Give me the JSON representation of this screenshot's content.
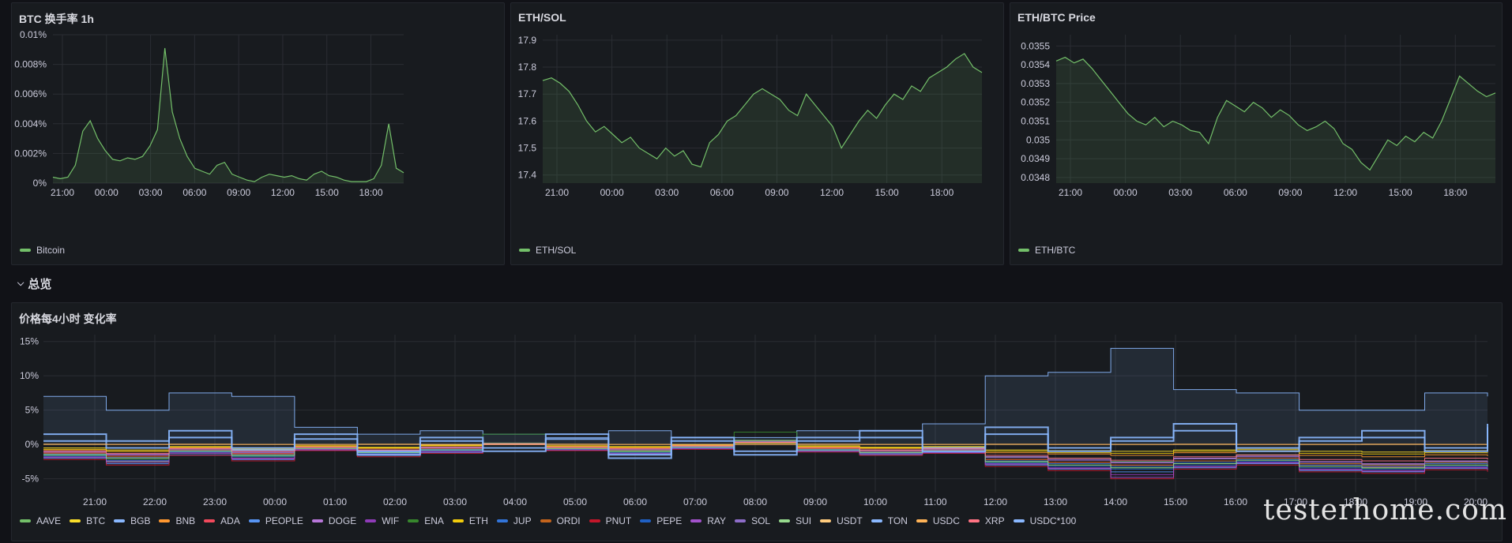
{
  "panels": {
    "btc": {
      "title": "BTC 换手率 1h"
    },
    "ethsol": {
      "title": "ETH/SOL"
    },
    "ethbtc": {
      "title": "ETH/BTC Price"
    },
    "change": {
      "title": "价格每4小时 变化率"
    }
  },
  "row": {
    "title": "总览",
    "chevron_icon": "chevron-down-icon"
  },
  "watermark": "testerhome.com",
  "colors": {
    "panel_bg": "#181b1f",
    "page_bg": "#111217",
    "green": "#73bf69",
    "grid": "#2a2d33"
  },
  "chart_data": [
    {
      "id": "btc",
      "type": "area",
      "title": "BTC 换手率 1h",
      "x_ticks": [
        "21:00",
        "00:00",
        "03:00",
        "06:00",
        "09:00",
        "12:00",
        "15:00",
        "18:00"
      ],
      "y_ticks": [
        "0%",
        "0.002%",
        "0.004%",
        "0.006%",
        "0.008%",
        "0.01%"
      ],
      "ylim": [
        0,
        0.01
      ],
      "series": [
        {
          "name": "Bitcoin",
          "color": "#73bf69",
          "values": [
            0.0004,
            0.0003,
            0.0004,
            0.0012,
            0.0035,
            0.0042,
            0.003,
            0.0022,
            0.0016,
            0.0015,
            0.0017,
            0.0016,
            0.0018,
            0.0025,
            0.0036,
            0.0091,
            0.0048,
            0.003,
            0.0018,
            0.001,
            0.0008,
            0.0006,
            0.0012,
            0.0014,
            0.0006,
            0.0004,
            0.0002,
            0.0001,
            0.0004,
            0.0006,
            0.0005,
            0.0004,
            0.0005,
            0.0003,
            0.0002,
            0.0006,
            0.0008,
            0.0005,
            0.0004,
            0.0002,
            0.0001,
            0.0001,
            0.0001,
            0.0003,
            0.0012,
            0.004,
            0.001,
            0.0007
          ]
        }
      ]
    },
    {
      "id": "ethsol",
      "type": "area",
      "title": "ETH/SOL",
      "x_ticks": [
        "21:00",
        "00:00",
        "03:00",
        "06:00",
        "09:00",
        "12:00",
        "15:00",
        "18:00"
      ],
      "y_ticks": [
        "17.4",
        "17.5",
        "17.6",
        "17.7",
        "17.8",
        "17.9"
      ],
      "ylim": [
        17.37,
        17.92
      ],
      "series": [
        {
          "name": "ETH/SOL",
          "color": "#73bf69",
          "values": [
            17.75,
            17.76,
            17.74,
            17.71,
            17.66,
            17.6,
            17.56,
            17.58,
            17.55,
            17.52,
            17.54,
            17.5,
            17.48,
            17.46,
            17.5,
            17.47,
            17.49,
            17.44,
            17.43,
            17.52,
            17.55,
            17.6,
            17.62,
            17.66,
            17.7,
            17.72,
            17.7,
            17.68,
            17.64,
            17.62,
            17.7,
            17.66,
            17.62,
            17.58,
            17.5,
            17.55,
            17.6,
            17.64,
            17.61,
            17.66,
            17.7,
            17.68,
            17.73,
            17.71,
            17.76,
            17.78,
            17.8,
            17.83,
            17.85,
            17.8,
            17.78
          ]
        }
      ]
    },
    {
      "id": "ethbtc",
      "type": "area",
      "title": "ETH/BTC Price",
      "x_ticks": [
        "21:00",
        "00:00",
        "03:00",
        "06:00",
        "09:00",
        "12:00",
        "15:00",
        "18:00"
      ],
      "y_ticks": [
        "0.0348",
        "0.0349",
        "0.035",
        "0.0351",
        "0.0352",
        "0.0353",
        "0.0354",
        "0.0355"
      ],
      "ylim": [
        0.03477,
        0.03556
      ],
      "series": [
        {
          "name": "ETH/BTC",
          "color": "#73bf69",
          "values": [
            0.03542,
            0.03544,
            0.03541,
            0.03543,
            0.03538,
            0.03532,
            0.03526,
            0.0352,
            0.03514,
            0.0351,
            0.03508,
            0.03512,
            0.03507,
            0.0351,
            0.03508,
            0.03505,
            0.03504,
            0.03498,
            0.03512,
            0.03521,
            0.03518,
            0.03515,
            0.0352,
            0.03517,
            0.03512,
            0.03516,
            0.03513,
            0.03508,
            0.03505,
            0.03507,
            0.0351,
            0.03506,
            0.03498,
            0.03495,
            0.03488,
            0.03484,
            0.03492,
            0.035,
            0.03497,
            0.03502,
            0.03499,
            0.03504,
            0.03501,
            0.0351,
            0.03522,
            0.03534,
            0.0353,
            0.03526,
            0.03523,
            0.03525
          ]
        }
      ]
    },
    {
      "id": "change",
      "type": "line",
      "title": "价格每4小时 变化率",
      "x_ticks": [
        "21:00",
        "22:00",
        "23:00",
        "00:00",
        "01:00",
        "02:00",
        "03:00",
        "04:00",
        "05:00",
        "06:00",
        "07:00",
        "08:00",
        "09:00",
        "10:00",
        "11:00",
        "12:00",
        "13:00",
        "14:00",
        "15:00",
        "16:00",
        "17:00",
        "18:00",
        "19:00",
        "20:00"
      ],
      "y_ticks": [
        "-5%",
        "0%",
        "5%",
        "10%",
        "15%"
      ],
      "ylim": [
        -7,
        16
      ],
      "series": [
        {
          "name": "AAVE",
          "color": "#73bf69",
          "values": [
            -1.5,
            -2.5,
            -1.0,
            -1.8,
            -0.5,
            -1.2,
            -0.8,
            0.2,
            -0.6,
            -1.0,
            -0.4,
            0.6,
            -0.8,
            -1.2,
            -0.6,
            -1.8,
            -2.0,
            -2.5,
            -2.0,
            -1.5,
            -2.8,
            -3.0,
            -2.6,
            -3.2
          ]
        },
        {
          "name": "BTC",
          "color": "#fade2a",
          "values": [
            -0.5,
            -0.8,
            -0.3,
            -0.6,
            -0.2,
            -0.4,
            -0.1,
            0.1,
            -0.2,
            -0.3,
            -0.1,
            0.2,
            -0.2,
            -0.4,
            -0.3,
            -0.8,
            -0.9,
            -1.0,
            -0.8,
            -0.7,
            -1.0,
            -1.1,
            -0.9,
            -1.0
          ]
        },
        {
          "name": "BGB",
          "color": "#8ab8ff",
          "values": [
            7.0,
            5.0,
            7.5,
            7.0,
            2.5,
            1.5,
            2.0,
            1.5,
            1.0,
            2.0,
            1.0,
            1.0,
            2.0,
            2.0,
            3.0,
            10.0,
            10.5,
            14.0,
            8.0,
            7.5,
            5.0,
            5.0,
            7.5,
            7.0
          ]
        },
        {
          "name": "BNB",
          "color": "#ff9830",
          "values": [
            -0.8,
            -1.0,
            -0.5,
            -0.8,
            -0.3,
            -0.6,
            -0.2,
            0.0,
            -0.3,
            -0.5,
            -0.2,
            0.3,
            -0.4,
            -0.6,
            -0.5,
            -1.2,
            -1.4,
            -1.6,
            -1.2,
            -1.0,
            -1.6,
            -1.8,
            -1.5,
            -1.7
          ]
        },
        {
          "name": "ADA",
          "color": "#f2495c",
          "values": [
            -1.2,
            -1.6,
            -0.8,
            -1.3,
            -0.5,
            -1.0,
            -0.6,
            0.1,
            -0.5,
            -0.8,
            -0.4,
            0.4,
            -0.6,
            -1.0,
            -0.8,
            -2.2,
            -2.6,
            -3.0,
            -2.4,
            -2.0,
            -3.0,
            -3.3,
            -2.8,
            -3.0
          ]
        },
        {
          "name": "PEOPLE",
          "color": "#5794f2",
          "values": [
            -2.0,
            -2.8,
            -1.5,
            -2.2,
            -0.8,
            -1.6,
            -1.2,
            0.0,
            -0.8,
            -1.4,
            -0.6,
            0.5,
            -1.0,
            -1.5,
            -1.2,
            -3.0,
            -3.6,
            -4.0,
            -3.4,
            -2.8,
            -3.8,
            -4.0,
            -3.5,
            -3.8
          ]
        },
        {
          "name": "DOGE",
          "color": "#b877d9",
          "values": [
            -1.0,
            -1.4,
            -0.6,
            -1.1,
            -0.4,
            -0.8,
            -0.4,
            0.1,
            -0.4,
            -0.7,
            -0.3,
            0.3,
            -0.5,
            -0.8,
            -0.7,
            -1.8,
            -2.2,
            -2.6,
            -2.0,
            -1.7,
            -2.5,
            -2.8,
            -2.4,
            -2.6
          ]
        },
        {
          "name": "WIF",
          "color": "#8f3bb8",
          "values": [
            -1.8,
            -2.4,
            -1.2,
            -2.0,
            -0.7,
            -1.4,
            -1.0,
            0.0,
            -0.7,
            -1.2,
            -0.5,
            0.4,
            -0.9,
            -1.3,
            -1.1,
            -2.8,
            -3.4,
            -4.4,
            -3.2,
            -2.6,
            -3.6,
            -3.8,
            -3.3,
            -3.6
          ]
        },
        {
          "name": "ENA",
          "color": "#37872d",
          "values": [
            -1.6,
            -2.2,
            -1.0,
            -1.7,
            -0.6,
            -1.2,
            -0.8,
            1.5,
            -0.6,
            -1.1,
            -0.4,
            1.8,
            -0.8,
            -1.2,
            -1.0,
            -2.6,
            -3.0,
            -3.4,
            -2.8,
            -2.3,
            -3.2,
            -3.5,
            -3.0,
            -3.4
          ]
        },
        {
          "name": "ETH",
          "color": "#f2cc0c",
          "values": [
            -0.7,
            -1.0,
            -0.4,
            -0.7,
            -0.2,
            -0.5,
            -0.2,
            0.1,
            -0.2,
            -0.4,
            -0.1,
            0.3,
            -0.3,
            -0.5,
            -0.4,
            -1.0,
            -1.2,
            -1.3,
            -1.0,
            -0.9,
            -1.3,
            -1.4,
            -1.2,
            -1.3
          ]
        },
        {
          "name": "JUP",
          "color": "#3274d9",
          "values": [
            -1.4,
            -1.9,
            -0.9,
            -1.5,
            -0.5,
            -1.1,
            -0.7,
            0.1,
            -0.5,
            -0.9,
            -0.4,
            0.4,
            -0.7,
            -1.1,
            -0.9,
            -2.4,
            -2.8,
            -3.2,
            -2.6,
            -2.2,
            -3.0,
            -3.2,
            -2.8,
            -3.0
          ]
        },
        {
          "name": "ORDI",
          "color": "#c4641c",
          "values": [
            -1.3,
            -1.8,
            -0.8,
            -1.4,
            -0.5,
            -1.0,
            -0.6,
            0.1,
            -0.5,
            -0.8,
            -0.3,
            0.4,
            -0.6,
            -1.0,
            -0.8,
            -2.2,
            -2.6,
            -3.0,
            -2.4,
            -2.0,
            -2.8,
            -3.0,
            -2.6,
            -2.8
          ]
        },
        {
          "name": "PNUT",
          "color": "#c4162a",
          "values": [
            -2.2,
            -3.0,
            -1.6,
            -2.4,
            -0.9,
            -1.8,
            -1.3,
            0.0,
            -0.9,
            -1.5,
            -0.7,
            0.5,
            -1.1,
            -1.6,
            -1.3,
            -3.2,
            -3.8,
            -5.0,
            -3.6,
            -3.0,
            -4.0,
            -4.2,
            -3.7,
            -4.0
          ]
        },
        {
          "name": "PEPE",
          "color": "#1f60c4",
          "values": [
            -1.7,
            -2.3,
            -1.1,
            -1.8,
            -0.6,
            -1.3,
            -0.9,
            0.0,
            -0.7,
            -1.2,
            -0.5,
            0.4,
            -0.9,
            -1.3,
            -1.1,
            -2.7,
            -3.2,
            -3.6,
            -3.0,
            -2.5,
            -3.4,
            -3.6,
            -3.2,
            -3.4
          ]
        },
        {
          "name": "RAY",
          "color": "#a352cc",
          "values": [
            -1.9,
            -2.6,
            -1.3,
            -2.1,
            -0.8,
            -1.5,
            -1.1,
            0.0,
            -0.8,
            -1.3,
            -0.6,
            0.4,
            -1.0,
            -1.4,
            -1.2,
            -2.9,
            -3.5,
            -4.8,
            -3.3,
            -2.7,
            -3.7,
            -3.9,
            -3.4,
            -3.7
          ]
        },
        {
          "name": "SOL",
          "color": "#8e6dc9",
          "values": [
            -1.1,
            -1.5,
            -0.7,
            -1.2,
            -0.4,
            -0.9,
            -0.5,
            0.1,
            -0.4,
            -0.7,
            -0.3,
            0.3,
            -0.5,
            -0.9,
            -0.7,
            -1.9,
            -2.3,
            -2.7,
            -2.1,
            -1.8,
            -2.6,
            -2.9,
            -2.5,
            -2.7
          ]
        },
        {
          "name": "SUI",
          "color": "#96d98d",
          "values": [
            -1.5,
            -2.0,
            -1.0,
            -1.6,
            -0.6,
            -1.2,
            -0.8,
            0.1,
            -0.6,
            -1.0,
            -0.4,
            0.5,
            -0.8,
            -1.2,
            -1.0,
            -2.5,
            -3.0,
            -3.4,
            -2.8,
            -2.3,
            -3.2,
            -3.4,
            -3.0,
            -3.2
          ]
        },
        {
          "name": "USDT",
          "color": "#ffcb7d",
          "values": [
            0.0,
            0.0,
            0.0,
            0.0,
            0.0,
            0.0,
            0.0,
            0.0,
            0.0,
            0.0,
            0.0,
            0.0,
            0.0,
            0.0,
            0.0,
            0.0,
            0.0,
            0.0,
            0.0,
            0.0,
            0.0,
            0.0,
            0.0,
            0.0
          ]
        },
        {
          "name": "TON",
          "color": "#8ab8ff",
          "values": [
            0.5,
            -0.5,
            1.0,
            -0.8,
            0.8,
            -1.0,
            0.5,
            -0.5,
            0.8,
            -1.5,
            0.5,
            -1.0,
            0.5,
            1.0,
            -0.5,
            1.5,
            -0.5,
            0.5,
            2.0,
            -0.5,
            0.5,
            1.0,
            -0.5,
            2.5
          ]
        },
        {
          "name": "USDC",
          "color": "#ffb357",
          "values": [
            0.05,
            0.0,
            0.05,
            0.0,
            0.0,
            0.05,
            0.0,
            0.0,
            0.05,
            0.0,
            0.0,
            0.0,
            0.05,
            0.0,
            0.0,
            0.05,
            0.0,
            0.0,
            0.05,
            0.0,
            0.0,
            0.05,
            0.0,
            0.0
          ]
        },
        {
          "name": "XRP",
          "color": "#ff7383",
          "values": [
            -1.0,
            -1.3,
            -0.6,
            -1.0,
            -0.4,
            -0.8,
            -0.4,
            0.1,
            -0.4,
            -0.6,
            -0.2,
            0.3,
            -0.5,
            -0.8,
            -0.6,
            -1.6,
            -2.0,
            -2.3,
            -1.8,
            -1.5,
            -2.2,
            -2.4,
            -2.0,
            -2.2
          ]
        },
        {
          "name": "USDC*100",
          "color": "#8ab8ff",
          "values": [
            1.5,
            0.5,
            2.0,
            -0.5,
            1.5,
            -1.5,
            1.0,
            -1.0,
            1.5,
            -2.0,
            1.0,
            -1.5,
            1.0,
            2.0,
            -1.0,
            2.5,
            -1.0,
            1.0,
            3.0,
            -1.0,
            1.0,
            2.0,
            -1.0,
            3.0
          ]
        }
      ]
    }
  ]
}
